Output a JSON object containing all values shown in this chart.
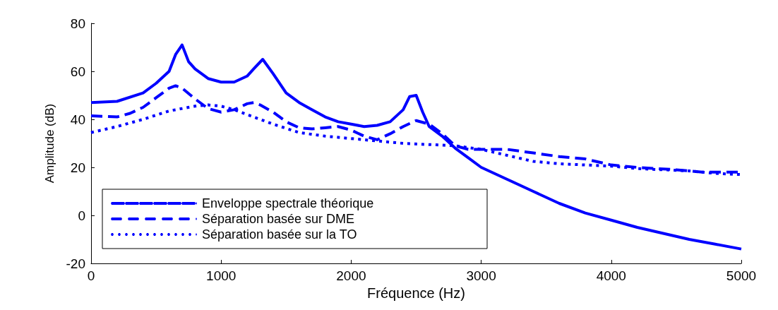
{
  "chart_data": {
    "type": "line",
    "xlabel": "Fréquence (Hz)",
    "ylabel": "Amplitude (dB)",
    "xlim": [
      0,
      5000
    ],
    "xticks": [
      0,
      1000,
      2000,
      3000,
      4000,
      5000
    ],
    "ylim": [
      -20,
      80
    ],
    "yticks": [
      -20,
      0,
      20,
      40,
      60,
      80
    ],
    "grid": false,
    "legend": "bottom left",
    "marker": "none",
    "series": [
      {
        "name": "Enveloppe spectrale théorique",
        "color": "#0000ff",
        "line_style": "solid",
        "x": [
          0,
          200,
          400,
          500,
          600,
          650,
          700,
          750,
          800,
          900,
          1000,
          1100,
          1200,
          1250,
          1320,
          1400,
          1500,
          1600,
          1700,
          1800,
          1900,
          2000,
          2100,
          2200,
          2300,
          2400,
          2450,
          2500,
          2550,
          2600,
          2700,
          2800,
          2900,
          3000,
          3200,
          3400,
          3600,
          3800,
          4000,
          4200,
          4400,
          4600,
          4800,
          5000
        ],
        "values": [
          47,
          47.5,
          51,
          55,
          60,
          67,
          71,
          64,
          61,
          57,
          55.5,
          55.5,
          58,
          61,
          65,
          59,
          51,
          47,
          44,
          41,
          39,
          38,
          37,
          37.5,
          39,
          44,
          49.5,
          50,
          43,
          37,
          33,
          28,
          24,
          20,
          15,
          10,
          5,
          1,
          -2,
          -5,
          -7.5,
          -10,
          -12,
          -14
        ]
      },
      {
        "name": "Séparation basée sur DME",
        "color": "#0000ff",
        "line_style": "dashed",
        "x": [
          0,
          200,
          300,
          400,
          500,
          600,
          650,
          700,
          800,
          900,
          1000,
          1100,
          1200,
          1250,
          1300,
          1400,
          1500,
          1600,
          1700,
          1800,
          1900,
          2000,
          2100,
          2200,
          2300,
          2400,
          2500,
          2600,
          2700,
          2800,
          2900,
          3000,
          3200,
          3400,
          3600,
          3800,
          4000,
          4200,
          4500,
          4700,
          5000
        ],
        "values": [
          41.5,
          41,
          42.5,
          45,
          49,
          53,
          54,
          53,
          48.5,
          44.5,
          43,
          44,
          46.5,
          47,
          46,
          43,
          39,
          36.5,
          36,
          36.5,
          37,
          35.5,
          33,
          31.5,
          34,
          37,
          39.5,
          38,
          34,
          29,
          27.5,
          27.5,
          27.5,
          26,
          24.5,
          23.5,
          21,
          20,
          19,
          18,
          18
        ]
      },
      {
        "name": "Séparation basée sur la TO",
        "color": "#0000ff",
        "line_style": "dotted",
        "x": [
          0,
          200,
          400,
          600,
          800,
          900,
          1000,
          1100,
          1200,
          1400,
          1600,
          1800,
          2000,
          2200,
          2400,
          2600,
          2800,
          3000,
          3200,
          3400,
          3600,
          3800,
          4000,
          4200,
          4400,
          4600,
          4800,
          5000
        ],
        "values": [
          34.5,
          37,
          40,
          43.5,
          45.5,
          46,
          45.5,
          44,
          42,
          38,
          34.5,
          33,
          32,
          31,
          30,
          29.5,
          29,
          27.5,
          25,
          22.5,
          21.5,
          21,
          20.5,
          19.5,
          19,
          18.5,
          17.5,
          17
        ]
      }
    ]
  }
}
